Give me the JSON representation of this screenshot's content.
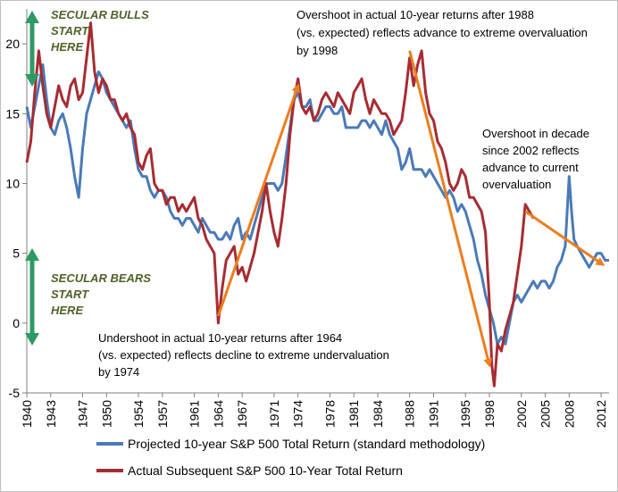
{
  "chart_data": {
    "type": "line",
    "title": "",
    "xlabel": "",
    "ylabel": "",
    "xlim": [
      1940,
      2013
    ],
    "ylim": [
      -5,
      22.5
    ],
    "grid": false,
    "legend_position": "bottom",
    "x_tick_labels": [
      "1940",
      "1943",
      "1947",
      "1950",
      "1954",
      "1957",
      "1961",
      "1964",
      "1967",
      "1971",
      "1974",
      "1978",
      "1981",
      "1984",
      "1988",
      "1991",
      "1995",
      "1998",
      "2002",
      "2005",
      "2008",
      "2012"
    ],
    "y_tick_labels": [
      "-5",
      "0",
      "5",
      "10",
      "15",
      "20"
    ],
    "colors": {
      "projected": "#4a7ab8",
      "actual": "#a62c32",
      "arrow": "#ed7d1f",
      "green_arrow": "#2e9a63",
      "annotation_green": "#4f6228"
    },
    "series": [
      {
        "name": "Projected 10-year S&P 500 Total Return (standard methodology)",
        "color": "#4a7ab8",
        "x": [
          1940.0,
          1940.5,
          1941.0,
          1941.5,
          1942.0,
          1942.5,
          1943.0,
          1943.5,
          1944.0,
          1944.5,
          1945.0,
          1945.5,
          1946.0,
          1946.5,
          1947.0,
          1947.5,
          1948.0,
          1948.5,
          1949.0,
          1949.5,
          1950.0,
          1950.5,
          1951.0,
          1951.5,
          1952.0,
          1952.5,
          1953.0,
          1953.5,
          1954.0,
          1954.5,
          1955.0,
          1955.5,
          1956.0,
          1956.5,
          1957.0,
          1957.5,
          1958.0,
          1958.5,
          1959.0,
          1959.5,
          1960.0,
          1960.5,
          1961.0,
          1961.5,
          1962.0,
          1962.5,
          1963.0,
          1963.5,
          1964.0,
          1964.5,
          1965.0,
          1965.5,
          1966.0,
          1966.5,
          1967.0,
          1967.5,
          1968.0,
          1968.5,
          1969.0,
          1969.5,
          1970.0,
          1970.5,
          1971.0,
          1971.5,
          1972.0,
          1972.5,
          1973.0,
          1973.5,
          1974.0,
          1974.5,
          1975.0,
          1975.5,
          1976.0,
          1976.5,
          1977.0,
          1977.5,
          1978.0,
          1978.5,
          1979.0,
          1979.5,
          1980.0,
          1980.5,
          1981.0,
          1981.5,
          1982.0,
          1982.5,
          1983.0,
          1983.5,
          1984.0,
          1984.5,
          1985.0,
          1985.5,
          1986.0,
          1986.5,
          1987.0,
          1987.5,
          1988.0,
          1988.5,
          1989.0,
          1989.5,
          1990.0,
          1990.5,
          1991.0,
          1991.5,
          1992.0,
          1992.5,
          1993.0,
          1993.5,
          1994.0,
          1994.5,
          1995.0,
          1995.5,
          1996.0,
          1996.5,
          1997.0,
          1997.5,
          1998.0,
          1998.5,
          1999.0,
          1999.5,
          2000.0,
          2000.5,
          2001.0,
          2001.5,
          2002.0,
          2002.5,
          2003.0,
          2003.5,
          2004.0,
          2004.5,
          2005.0,
          2005.5,
          2006.0,
          2006.5,
          2007.0,
          2007.5,
          2008.0,
          2008.3,
          2008.6,
          2009.0,
          2009.5,
          2010.0,
          2010.5,
          2011.0,
          2011.5,
          2012.0,
          2012.5,
          2013.0
        ],
        "values": [
          15.5,
          14.0,
          15.5,
          17.0,
          18.5,
          16.0,
          14.0,
          13.5,
          14.5,
          15.0,
          14.0,
          12.5,
          10.5,
          9.0,
          12.5,
          15.0,
          16.0,
          17.0,
          18.0,
          17.5,
          16.5,
          16.0,
          15.5,
          15.0,
          14.5,
          14.0,
          14.5,
          12.5,
          11.0,
          10.5,
          10.5,
          9.5,
          9.0,
          9.5,
          9.5,
          9.0,
          8.0,
          7.5,
          7.5,
          7.0,
          7.5,
          7.5,
          7.0,
          6.5,
          7.5,
          7.0,
          6.5,
          6.5,
          6.0,
          6.0,
          6.5,
          6.0,
          7.0,
          7.5,
          6.0,
          6.5,
          6.0,
          7.0,
          8.0,
          9.0,
          10.0,
          10.0,
          10.0,
          9.5,
          10.0,
          12.0,
          14.0,
          16.0,
          16.5,
          15.5,
          15.5,
          16.0,
          14.5,
          14.5,
          15.0,
          15.5,
          15.5,
          15.0,
          15.0,
          15.5,
          14.0,
          14.0,
          14.0,
          14.0,
          14.5,
          14.5,
          14.0,
          14.5,
          14.0,
          13.5,
          14.5,
          13.5,
          13.0,
          12.5,
          11.0,
          11.5,
          12.5,
          11.0,
          11.0,
          11.0,
          10.5,
          11.0,
          10.5,
          10.0,
          9.5,
          9.0,
          9.5,
          9.0,
          8.0,
          8.5,
          8.0,
          7.0,
          6.0,
          4.5,
          3.5,
          2.0,
          1.0,
          0.0,
          -1.5,
          -1.0,
          -1.5,
          0.0,
          1.5,
          2.0,
          1.5,
          2.0,
          2.5,
          3.0,
          2.5,
          3.0,
          3.0,
          2.5,
          3.0,
          4.0,
          4.5,
          5.5,
          10.5,
          8.0,
          6.0,
          5.5,
          5.0,
          4.5,
          4.0,
          4.5,
          5.0,
          5.0,
          4.5,
          4.5
        ]
      },
      {
        "name": "Actual Subsequent S&P 500 10-Year Total Return",
        "color": "#a62c32",
        "x": [
          1940.0,
          1940.5,
          1941.0,
          1941.5,
          1942.0,
          1942.5,
          1943.0,
          1943.5,
          1944.0,
          1944.5,
          1945.0,
          1945.5,
          1946.0,
          1946.5,
          1947.0,
          1947.5,
          1948.0,
          1948.5,
          1949.0,
          1949.5,
          1950.0,
          1950.5,
          1951.0,
          1951.5,
          1952.0,
          1952.5,
          1953.0,
          1953.5,
          1954.0,
          1954.5,
          1955.0,
          1955.5,
          1956.0,
          1956.5,
          1957.0,
          1957.5,
          1958.0,
          1958.5,
          1959.0,
          1959.5,
          1960.0,
          1960.5,
          1961.0,
          1961.5,
          1962.0,
          1962.5,
          1963.0,
          1963.5,
          1964.0,
          1964.5,
          1965.0,
          1965.5,
          1966.0,
          1966.5,
          1967.0,
          1967.5,
          1968.0,
          1968.5,
          1969.0,
          1969.5,
          1970.0,
          1970.5,
          1971.0,
          1971.5,
          1972.0,
          1972.5,
          1973.0,
          1973.5,
          1974.0,
          1974.5,
          1975.0,
          1975.5,
          1976.0,
          1976.5,
          1977.0,
          1977.5,
          1978.0,
          1978.5,
          1979.0,
          1979.5,
          1980.0,
          1980.5,
          1981.0,
          1981.5,
          1982.0,
          1982.5,
          1983.0,
          1983.5,
          1984.0,
          1984.5,
          1985.0,
          1985.5,
          1986.0,
          1986.5,
          1987.0,
          1987.5,
          1988.0,
          1988.5,
          1989.0,
          1989.5,
          1990.0,
          1990.5,
          1991.0,
          1991.5,
          1992.0,
          1992.5,
          1993.0,
          1993.5,
          1994.0,
          1994.5,
          1995.0,
          1995.5,
          1996.0,
          1996.5,
          1997.0,
          1997.5,
          1998.0,
          1998.3,
          1998.6,
          1999.0,
          1999.5,
          2000.0,
          2000.5,
          2001.0,
          2001.5,
          2002.0,
          2002.5,
          2003.0,
          2003.5
        ],
        "values": [
          11.5,
          13.0,
          16.5,
          19.5,
          17.0,
          15.0,
          14.0,
          15.5,
          17.0,
          16.0,
          15.5,
          17.0,
          17.5,
          16.0,
          16.5,
          19.0,
          21.5,
          18.0,
          16.5,
          17.5,
          17.0,
          16.0,
          16.0,
          15.0,
          14.5,
          15.0,
          14.0,
          13.5,
          11.5,
          11.0,
          12.0,
          12.5,
          10.0,
          9.5,
          9.5,
          8.5,
          9.0,
          9.0,
          8.0,
          8.5,
          8.0,
          8.5,
          9.0,
          7.5,
          7.0,
          6.0,
          5.5,
          5.0,
          0.0,
          2.5,
          4.5,
          5.0,
          5.5,
          3.5,
          4.0,
          3.0,
          4.0,
          5.0,
          6.5,
          8.0,
          10.0,
          8.0,
          6.5,
          5.5,
          7.5,
          10.0,
          13.5,
          16.0,
          17.5,
          15.5,
          15.0,
          15.5,
          14.5,
          15.0,
          16.0,
          16.5,
          16.0,
          15.5,
          16.5,
          16.0,
          15.5,
          15.0,
          16.5,
          17.0,
          17.5,
          16.0,
          15.0,
          16.0,
          15.5,
          15.0,
          15.0,
          14.5,
          13.5,
          14.0,
          14.5,
          16.5,
          19.0,
          17.0,
          18.5,
          19.5,
          16.5,
          15.0,
          14.5,
          13.0,
          12.5,
          11.5,
          10.0,
          9.5,
          10.0,
          11.0,
          10.5,
          9.0,
          9.0,
          8.5,
          8.0,
          6.5,
          1.5,
          -3.0,
          -4.5,
          -1.5,
          -2.0,
          -0.5,
          0.5,
          1.5,
          3.5,
          5.5,
          8.5,
          8.0,
          7.5
        ]
      }
    ],
    "annotations": {
      "overshoot_1988": [
        "Overshoot in actual 10-year returns after 1988",
        "(vs. expected) reflects advance to extreme overvaluation",
        "by 1998"
      ],
      "overshoot_2002": [
        "Overshoot in decade",
        "since 2002 reflects",
        "advance to current",
        "overvaluation"
      ],
      "undershoot_1964": [
        "Undershoot in actual 10-year returns after 1964",
        "(vs. expected) reflects decline to extreme undervaluation",
        "by 1974"
      ],
      "secular_bulls": [
        "SECULAR BULLS",
        "START",
        "HERE"
      ],
      "secular_bears": [
        "SECULAR BEARS",
        "START",
        "HERE"
      ]
    },
    "arrows": [
      {
        "from": [
          1964.0,
          0.5
        ],
        "to": [
          1974.0,
          17.0
        ]
      },
      {
        "from": [
          1988.0,
          19.5
        ],
        "to": [
          1998.0,
          -3.0
        ]
      },
      {
        "from": [
          2002.5,
          8.0
        ],
        "to": [
          2012.2,
          4.2
        ]
      }
    ]
  }
}
